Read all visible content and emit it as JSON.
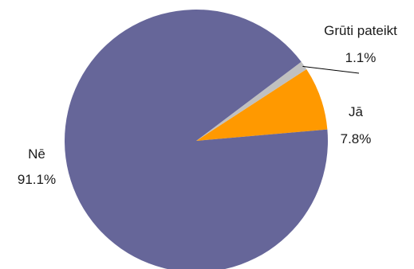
{
  "chart_data": {
    "type": "pie",
    "slices": [
      {
        "label": "Jā",
        "value": 7.8,
        "value_label": "7.8%",
        "color": "#FF9900"
      },
      {
        "label": "Grūti pateikt",
        "value": 1.1,
        "value_label": "1.1%",
        "color": "#C0C0C0"
      },
      {
        "label": "Nē",
        "value": 91.1,
        "value_label": "91.1%",
        "color": "#666699"
      }
    ],
    "start_angle_deg": 5,
    "direction": "counterclockwise",
    "legend": "none",
    "data_labels": "category and percent beside slices"
  }
}
